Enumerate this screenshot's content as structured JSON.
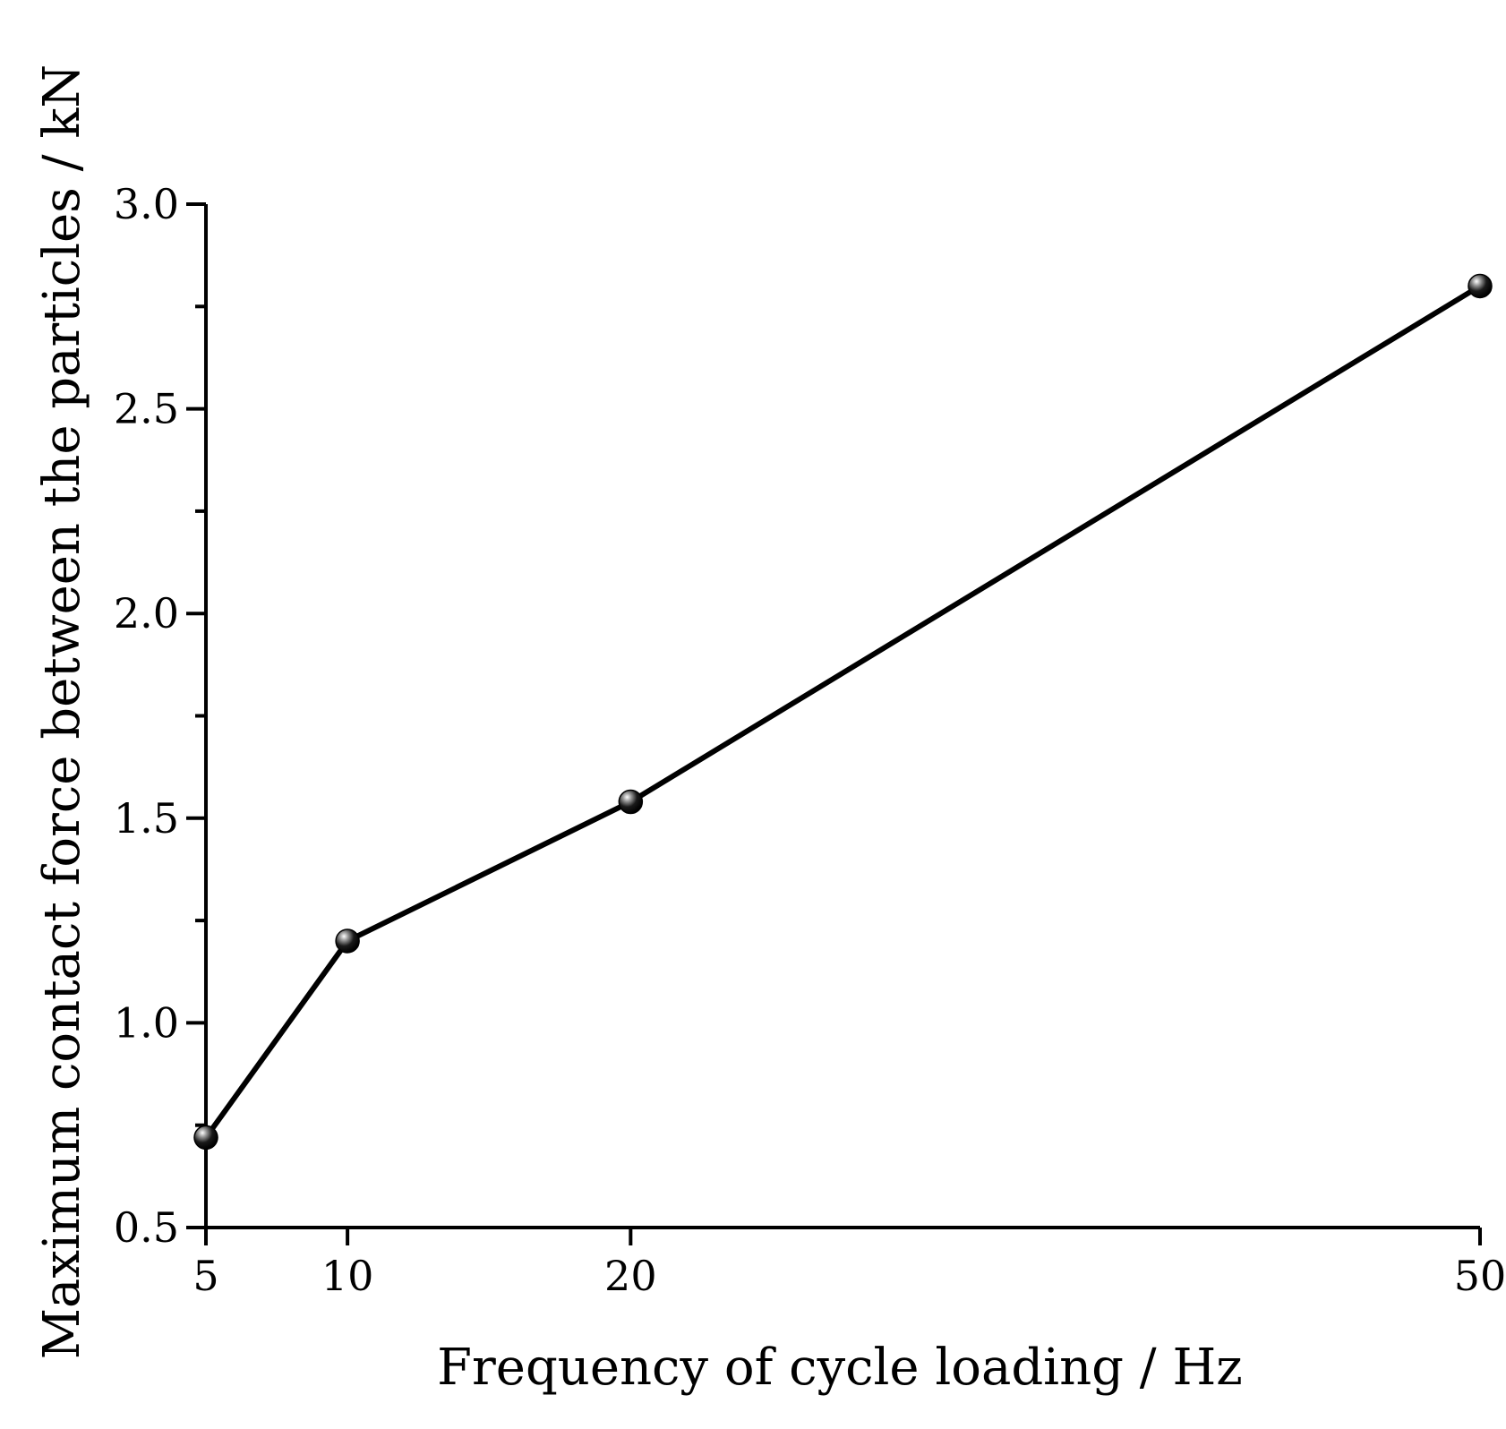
{
  "chart_data": {
    "type": "line",
    "xlabel": "Frequency of cycle loading / Hz",
    "ylabel": "Maximum contact force between the particles / kN",
    "x": [
      5,
      10,
      20,
      50
    ],
    "y": [
      0.72,
      1.2,
      1.54,
      2.8
    ],
    "xticks": [
      5,
      10,
      20,
      50
    ],
    "xtick_labels": [
      "5",
      "10",
      "20",
      "50"
    ],
    "yticks": [
      0.5,
      1.0,
      1.5,
      2.0,
      2.5,
      3.0
    ],
    "ytick_labels": [
      "0.5",
      "1.0",
      "1.5",
      "2.0",
      "2.5",
      "3.0"
    ],
    "yminor_ticks": [
      0.75,
      1.25,
      1.75,
      2.25,
      2.75
    ],
    "xlim": [
      5,
      50
    ],
    "ylim": [
      0.5,
      3.0
    ],
    "grid": false,
    "legend": "none",
    "colors": {
      "line": "#000000",
      "marker": "#000000"
    }
  }
}
